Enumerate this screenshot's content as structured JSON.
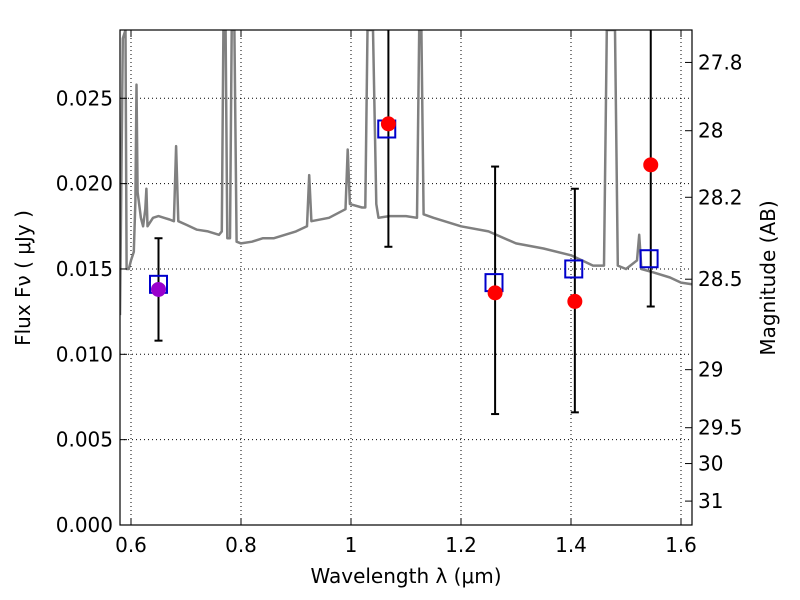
{
  "chart_data": {
    "type": "scatter",
    "xlabel": "Wavelength  λ (μm)",
    "ylabel": "Flux  Fν  ( μJy )",
    "ylabel_right": "Magnitude (AB)",
    "xlim": [
      0.58,
      1.62
    ],
    "ylim": [
      0.0,
      0.029
    ],
    "grid": true,
    "x_ticks": [
      0.6,
      0.8,
      1.0,
      1.2,
      1.4,
      1.6
    ],
    "x_tick_labels": [
      "0.6",
      "0.8",
      "1",
      "1.2",
      "1.4",
      "1.6"
    ],
    "y_ticks": [
      0.0,
      0.005,
      0.01,
      0.015,
      0.02,
      0.025
    ],
    "y_tick_labels": [
      "0.000",
      "0.005",
      "0.010",
      "0.015",
      "0.020",
      "0.025"
    ],
    "mag_ticks": [
      {
        "label": "27.8",
        "flux": 0.0271
      },
      {
        "label": "28",
        "flux": 0.0231
      },
      {
        "label": "28.2",
        "flux": 0.0192
      },
      {
        "label": "28.5",
        "flux": 0.0144
      },
      {
        "label": "29",
        "flux": 0.0091
      },
      {
        "label": "29.5",
        "flux": 0.0057
      },
      {
        "label": "30",
        "flux": 0.0036
      },
      {
        "label": "31",
        "flux": 0.0014
      }
    ],
    "model_spectrum": {
      "color": "#808080",
      "points": [
        [
          0.58,
          0.0123
        ],
        [
          0.585,
          0.0285
        ],
        [
          0.59,
          0.029
        ],
        [
          0.592,
          0.015
        ],
        [
          0.596,
          0.015
        ],
        [
          0.6,
          0.0155
        ],
        [
          0.605,
          0.016
        ],
        [
          0.608,
          0.019
        ],
        [
          0.61,
          0.0258
        ],
        [
          0.612,
          0.0195
        ],
        [
          0.618,
          0.018
        ],
        [
          0.622,
          0.0175
        ],
        [
          0.626,
          0.0185
        ],
        [
          0.628,
          0.0197
        ],
        [
          0.63,
          0.0175
        ],
        [
          0.64,
          0.018
        ],
        [
          0.65,
          0.0181
        ],
        [
          0.66,
          0.018
        ],
        [
          0.67,
          0.0179
        ],
        [
          0.678,
          0.0178
        ],
        [
          0.682,
          0.0222
        ],
        [
          0.686,
          0.0178
        ],
        [
          0.7,
          0.0176
        ],
        [
          0.72,
          0.0173
        ],
        [
          0.74,
          0.0172
        ],
        [
          0.76,
          0.017
        ],
        [
          0.765,
          0.0172
        ],
        [
          0.768,
          0.029
        ],
        [
          0.772,
          0.029
        ],
        [
          0.775,
          0.0168
        ],
        [
          0.78,
          0.0168
        ],
        [
          0.783,
          0.029
        ],
        [
          0.788,
          0.029
        ],
        [
          0.792,
          0.0166
        ],
        [
          0.8,
          0.0165
        ],
        [
          0.82,
          0.0166
        ],
        [
          0.84,
          0.0168
        ],
        [
          0.86,
          0.0168
        ],
        [
          0.88,
          0.017
        ],
        [
          0.9,
          0.0172
        ],
        [
          0.92,
          0.0175
        ],
        [
          0.924,
          0.0205
        ],
        [
          0.928,
          0.0178
        ],
        [
          0.96,
          0.018
        ],
        [
          0.99,
          0.0185
        ],
        [
          0.994,
          0.022
        ],
        [
          0.998,
          0.0188
        ],
        [
          1.02,
          0.0186
        ],
        [
          1.026,
          0.0186
        ],
        [
          1.03,
          0.029
        ],
        [
          1.04,
          0.029
        ],
        [
          1.046,
          0.0188
        ],
        [
          1.05,
          0.018
        ],
        [
          1.07,
          0.0181
        ],
        [
          1.1,
          0.0181
        ],
        [
          1.12,
          0.018
        ],
        [
          1.124,
          0.029
        ],
        [
          1.128,
          0.029
        ],
        [
          1.132,
          0.0182
        ],
        [
          1.15,
          0.018
        ],
        [
          1.2,
          0.0175
        ],
        [
          1.25,
          0.0172
        ],
        [
          1.3,
          0.0165
        ],
        [
          1.35,
          0.0162
        ],
        [
          1.4,
          0.0158
        ],
        [
          1.42,
          0.0155
        ],
        [
          1.44,
          0.0152
        ],
        [
          1.46,
          0.0152
        ],
        [
          1.465,
          0.029
        ],
        [
          1.48,
          0.029
        ],
        [
          1.485,
          0.0152
        ],
        [
          1.5,
          0.015
        ],
        [
          1.52,
          0.0155
        ],
        [
          1.524,
          0.017
        ],
        [
          1.528,
          0.015
        ],
        [
          1.55,
          0.0148
        ],
        [
          1.58,
          0.0145
        ],
        [
          1.6,
          0.0142
        ],
        [
          1.62,
          0.0141
        ]
      ]
    },
    "series": [
      {
        "marker": "open-square",
        "color": "#0000cc",
        "x": [
          0.65,
          1.065,
          1.26,
          1.405,
          1.542
        ],
        "y": [
          0.0141,
          0.0232,
          0.0142,
          0.015,
          0.0156
        ]
      },
      {
        "marker": "filled-circle",
        "color": "#ff0000",
        "x": [
          1.068,
          1.262,
          1.407,
          1.545
        ],
        "y": [
          0.0235,
          0.0136,
          0.0131,
          0.0211
        ],
        "error_low": [
          0.0163,
          0.0065,
          0.0066,
          0.0128
        ],
        "error_high": [
          0.029,
          0.021,
          0.0197,
          0.029
        ]
      },
      {
        "marker": "filled-circle",
        "color": "#9900cc",
        "x": [
          0.65
        ],
        "y": [
          0.0138
        ],
        "error_low": [
          0.0108
        ],
        "error_high": [
          0.0168
        ]
      }
    ]
  }
}
